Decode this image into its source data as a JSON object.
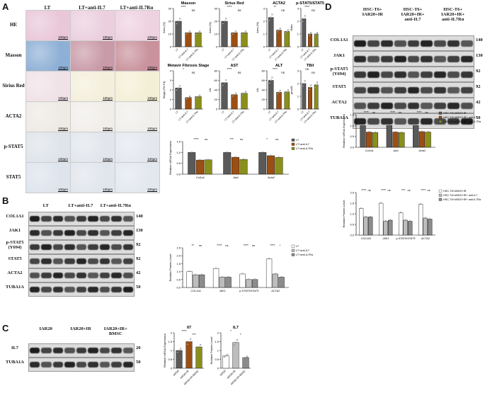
{
  "panel_labels": {
    "A": "A",
    "B": "B",
    "C": "C",
    "D": "D"
  },
  "panelA": {
    "columns": [
      "LT",
      "LT+anti-IL7",
      "LT+anti-IL7Rα"
    ],
    "rows": [
      "HE",
      "Masson",
      "Sirius Red",
      "ACTA2",
      "p-STAT5",
      "STAT5"
    ],
    "scale_bar": "100μm"
  },
  "panelB_blot": {
    "columns": [
      "LT",
      "LT+anti-IL7",
      "LT+anti-IL7Rα"
    ],
    "bands": [
      {
        "label": "COL1A1",
        "kda": "140"
      },
      {
        "label": "JAK1",
        "kda": "130"
      },
      {
        "label": "p-STAT5\n(Y694)",
        "kda": "92"
      },
      {
        "label": "STAT5",
        "kda": "92"
      },
      {
        "label": "ACTA2",
        "kda": "42"
      },
      {
        "label": "TUBA1A",
        "kda": "50"
      }
    ]
  },
  "panelC_blot": {
    "columns": [
      "IAR20",
      "IAR20+IR",
      "IAR20+IR+\nBMSC"
    ],
    "bands": [
      {
        "label": "IL7",
        "kda": "20"
      },
      {
        "label": "TUBA1A",
        "kda": "50"
      }
    ]
  },
  "panelD_blot": {
    "columns": [
      "HSC-T6+\nIAR20+IR",
      "HSC-T6+\nIAR20+IR+\nanti-IL7",
      "HSC-T6+\nIAR20+IR+\nanti-IL7Rα"
    ],
    "bands": [
      {
        "label": "COL1A1",
        "kda": "140"
      },
      {
        "label": "JAK1",
        "kda": "130"
      },
      {
        "label": "p-STAT5\n(Y694)",
        "kda": "92"
      },
      {
        "label": "STAT5",
        "kda": "92"
      },
      {
        "label": "ACTA2",
        "kda": "42"
      },
      {
        "label": "TUBA1A",
        "kda": "50"
      }
    ]
  },
  "colors": {
    "dark_gray": "#5a5a5a",
    "brown": "#9c4f12",
    "olive": "#8a8f1a",
    "white": "#ffffff",
    "light_gray": "#bdbdbd",
    "mid_gray": "#8c8c8c"
  },
  "chart_data": [
    {
      "id": "a_masson",
      "type": "bar",
      "title": "Masson",
      "ylabel": "Area (%)",
      "categories": [
        "LT",
        "LT+anti-IL7",
        "LT+anti-IL7Rα"
      ],
      "values": [
        20,
        11,
        11
      ],
      "ylim": [
        0,
        30
      ],
      "yticks": [
        0,
        10,
        20,
        30
      ],
      "sig": [
        "****",
        "ns"
      ]
    },
    {
      "id": "a_sirius",
      "type": "bar",
      "title": "Sirius Red",
      "ylabel": "Area (%)",
      "categories": [
        "LT",
        "LT+anti-IL7",
        "LT+anti-IL7Rα"
      ],
      "values": [
        20,
        11,
        11
      ],
      "ylim": [
        0,
        30
      ],
      "yticks": [
        0,
        10,
        20,
        30
      ],
      "sig": [
        "****",
        "ns"
      ]
    },
    {
      "id": "a_acta2",
      "type": "bar",
      "title": "ACTA2",
      "ylabel": "Area (%)",
      "categories": [
        "LT",
        "LT+anti-IL7",
        "LT+anti-IL7Rα"
      ],
      "values": [
        2.3,
        1.3,
        1.2
      ],
      "ylim": [
        0,
        3
      ],
      "yticks": [
        0,
        1,
        2,
        3
      ],
      "sig": [
        "**",
        "ns"
      ]
    },
    {
      "id": "a_pstat",
      "type": "bar",
      "title": "p-STAT5/STAT5",
      "ylabel": "Ratio",
      "categories": [
        "LT",
        "LT+anti-IL7",
        "LT+anti-IL7Rα"
      ],
      "values": [
        2.2,
        1.0,
        1.0
      ],
      "ylim": [
        0,
        3
      ],
      "yticks": [
        0,
        1,
        2,
        3
      ],
      "sig": [
        "****",
        "ns"
      ]
    },
    {
      "id": "a_metavir",
      "type": "bar",
      "title": "Metavir Fibrosis Stage",
      "ylabel": "Stage (F0-F4)",
      "categories": [
        "LT",
        "LT+anti-IL7",
        "LT+anti-IL7Rα"
      ],
      "values": [
        2.2,
        1.2,
        1.3
      ],
      "ylim": [
        0,
        4
      ],
      "yticks": [
        0,
        1,
        2,
        3,
        4
      ],
      "sig": [
        "*",
        "ns"
      ]
    },
    {
      "id": "a_ast",
      "type": "bar",
      "title": "AST",
      "ylabel": "U/L",
      "categories": [
        "LT",
        "LT+anti-IL7",
        "LT+anti-IL7Rα"
      ],
      "values": [
        55,
        30,
        33
      ],
      "ylim": [
        0,
        80
      ],
      "yticks": [
        0,
        20,
        40,
        60,
        80
      ],
      "sig": [
        "****",
        "ns"
      ]
    },
    {
      "id": "a_alt",
      "type": "bar",
      "title": "ALT",
      "ylabel": "U/L",
      "categories": [
        "LT",
        "LT+anti-IL7",
        "LT+anti-IL7Rα"
      ],
      "values": [
        60,
        35,
        36
      ],
      "ylim": [
        0,
        80
      ],
      "yticks": [
        0,
        20,
        40,
        60,
        80
      ],
      "sig": [
        "****",
        "ns"
      ]
    },
    {
      "id": "a_tbil",
      "type": "bar",
      "title": "TBil",
      "ylabel": "μmol/L",
      "categories": [
        "LT",
        "LT+anti-IL7",
        "LT+anti-IL7Rα"
      ],
      "values": [
        2.0,
        1.7,
        1.9
      ],
      "ylim": [
        0,
        3
      ],
      "yticks": [
        0,
        1,
        2,
        3
      ],
      "sig": [
        "ns",
        "ns"
      ]
    },
    {
      "id": "b_mrna",
      "type": "bar",
      "ylabel": "Relative mRNA Expression",
      "categories": [
        "Col1a1",
        "Jak1",
        "Acta2"
      ],
      "series": [
        {
          "name": "LT",
          "values": [
            1.0,
            1.0,
            1.0
          ]
        },
        {
          "name": "LT+anti-IL7",
          "values": [
            0.65,
            0.78,
            0.85
          ]
        },
        {
          "name": "LT+anti-IL7Rα",
          "values": [
            0.66,
            0.68,
            0.77
          ]
        }
      ],
      "ylim": [
        0,
        1.5
      ],
      "yticks": [
        0.0,
        0.5,
        1.0,
        1.5
      ],
      "sig": [
        "****",
        "ns",
        "***",
        "ns",
        "*",
        "ns"
      ]
    },
    {
      "id": "b_prot",
      "type": "bar",
      "ylabel": "Relative Protein Level",
      "categories": [
        "COL1A1",
        "JAK1",
        "p-STAT5/STAT5",
        "ACTA2"
      ],
      "series": [
        {
          "name": "LT",
          "values": [
            1.0,
            1.2,
            0.85,
            1.8
          ]
        },
        {
          "name": "LT+anti-IL7",
          "values": [
            0.8,
            0.65,
            0.5,
            0.85
          ]
        },
        {
          "name": "LT+anti-IL7Rα",
          "values": [
            0.8,
            0.65,
            0.5,
            0.65
          ]
        }
      ],
      "ylim": [
        0,
        2.5
      ],
      "yticks": [
        0.0,
        0.5,
        1.0,
        1.5,
        2.0,
        2.5
      ],
      "sig": [
        "**",
        "ns",
        "****",
        "ns",
        "****",
        "ns",
        "****",
        "*"
      ]
    },
    {
      "id": "c_mrna",
      "type": "bar",
      "title": "Il7",
      "ylabel": "Relative mRNA Expression",
      "categories": [
        "IAR20",
        "IAR20+IR",
        "IAR20+IR+BMSC"
      ],
      "values": [
        1.0,
        1.5,
        1.2
      ],
      "ylim": [
        0,
        2.0
      ],
      "yticks": [
        0.0,
        0.5,
        1.0,
        1.5,
        2.0
      ],
      "sig": [
        "****",
        "***"
      ]
    },
    {
      "id": "c_prot",
      "type": "bar",
      "title": "IL7",
      "ylabel": "Relative Protein Level",
      "categories": [
        "IAR20",
        "IAR20+IR",
        "IAR20+IR+BMSC"
      ],
      "values": [
        0.7,
        1.45,
        0.6
      ],
      "ylim": [
        0,
        2.0
      ],
      "yticks": [
        0.0,
        0.5,
        1.0,
        1.5,
        2.0
      ],
      "sig": [
        "*",
        "*"
      ]
    },
    {
      "id": "d_mrna",
      "type": "bar",
      "ylabel": "Relative mRNA Expression",
      "categories": [
        "Col1a1",
        "Jak1",
        "Acta2"
      ],
      "series": [
        {
          "name": "HSC-T6+IAR20+IR",
          "values": [
            1.0,
            1.0,
            1.0
          ]
        },
        {
          "name": "HSC-T6+IAR20+IR+ anti-IL7",
          "values": [
            0.7,
            0.7,
            0.72
          ]
        },
        {
          "name": "HSC-T6+IAR20+IR+ anti-IL7Rα",
          "values": [
            0.68,
            0.68,
            0.7
          ]
        }
      ],
      "ylim": [
        0,
        1.5
      ],
      "yticks": [
        0.0,
        0.5,
        1.0,
        1.5
      ],
      "sig": [
        "****",
        "ns",
        "****",
        "ns",
        "****",
        "ns"
      ]
    },
    {
      "id": "d_prot",
      "type": "bar",
      "ylabel": "Relative Protein Level",
      "categories": [
        "COL1A1",
        "JAK1",
        "p-STAT5/STAT5",
        "ACTA2"
      ],
      "series": [
        {
          "name": "HSC-T6+IAR20+IR",
          "values": [
            1.25,
            1.5,
            1.05,
            1.45
          ]
        },
        {
          "name": "HSC-T6+IAR20+IR+ anti-IL7",
          "values": [
            0.85,
            0.65,
            0.7,
            0.8
          ]
        },
        {
          "name": "HSC-T6+IAR20+IR+ anti-IL7Rα",
          "values": [
            0.85,
            0.7,
            0.65,
            0.75
          ]
        }
      ],
      "ylim": [
        0,
        2.0
      ],
      "yticks": [
        0.0,
        0.5,
        1.0,
        1.5,
        2.0
      ],
      "sig": [
        "****",
        "ns",
        "****",
        "ns",
        "***",
        "ns",
        "****",
        "ns"
      ]
    }
  ]
}
